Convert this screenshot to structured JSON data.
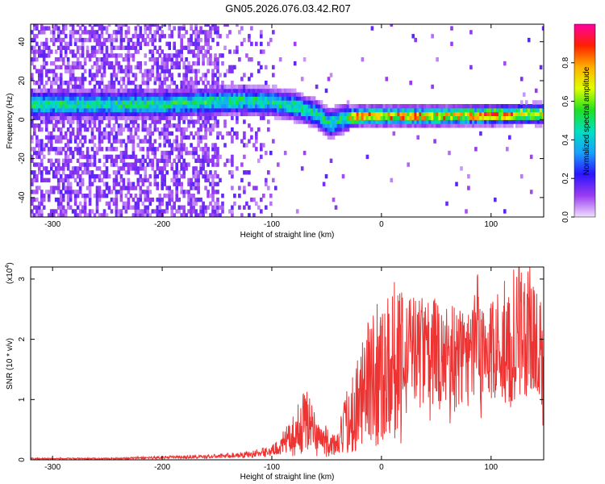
{
  "figure": {
    "title": "GN05.2026.076.03.42.R07"
  },
  "chart_data": [
    {
      "type": "heatmap",
      "xlabel": "Height of straight line (km)",
      "ylabel": "Frequency (Hz)",
      "xlim": [
        -320,
        148
      ],
      "ylim": [
        -50,
        49
      ],
      "x_ticks": [
        -300,
        -200,
        -100,
        0,
        100
      ],
      "y_ticks": [
        -40,
        -20,
        0,
        20,
        40
      ],
      "grid": false,
      "colorbar": {
        "label": "Normalized spectral amplitude",
        "range": [
          0,
          1
        ],
        "ticks": [
          0.0,
          0.2,
          0.4,
          0.6,
          0.8
        ],
        "colors": [
          "#f0e0ff",
          "#9a3cf0",
          "#2a14ff",
          "#1aa0ff",
          "#00e0c0",
          "#20e020",
          "#e0ff00",
          "#ffb000",
          "#ff2000",
          "#ff00a0"
        ]
      },
      "ridge": {
        "description_points": [
          {
            "x": -230,
            "y": 7
          },
          {
            "x": -200,
            "y": 7
          },
          {
            "x": -170,
            "y": 8
          },
          {
            "x": -130,
            "y": 9
          },
          {
            "x": -100,
            "y": 8
          },
          {
            "x": -80,
            "y": 6
          },
          {
            "x": -60,
            "y": 2
          },
          {
            "x": -48,
            "y": -3
          },
          {
            "x": -35,
            "y": 0
          },
          {
            "x": -20,
            "y": 1
          },
          {
            "x": 0,
            "y": 1
          },
          {
            "x": 50,
            "y": 1
          },
          {
            "x": 100,
            "y": 1.5
          },
          {
            "x": 130,
            "y": 2
          },
          {
            "x": 148,
            "y": 2
          }
        ]
      }
    },
    {
      "type": "line",
      "xlabel": "Height of straight line (km)",
      "ylabel": "SNR (10 * v/v)",
      "y_multiplier": "(x10",
      "y_multiplier_exp": "4",
      "y_multiplier_close": ")",
      "xlim": [
        -320,
        148
      ],
      "ylim": [
        0,
        3.2
      ],
      "x_ticks": [
        -300,
        -200,
        -100,
        0,
        100
      ],
      "y_ticks": [
        0,
        1,
        2,
        3
      ],
      "grid": false,
      "series": [
        {
          "color": "#ee3333",
          "x": [
            -320,
            -250,
            -200,
            -160,
            -140,
            -120,
            -100,
            -90,
            -80,
            -72,
            -68,
            -64,
            -60,
            -55,
            -50,
            -45,
            -40,
            -35,
            -30,
            -25,
            -20,
            -15,
            -10,
            -5,
            0,
            10,
            20,
            30,
            40,
            50,
            60,
            70,
            80,
            90,
            100,
            110,
            120,
            125,
            130,
            140,
            148
          ],
          "y": [
            0.02,
            0.02,
            0.04,
            0.05,
            0.07,
            0.09,
            0.15,
            0.25,
            0.4,
            0.6,
            0.75,
            0.55,
            0.4,
            0.35,
            0.3,
            0.25,
            0.22,
            0.5,
            0.7,
            0.85,
            1.0,
            1.2,
            1.35,
            1.5,
            1.45,
            1.7,
            1.8,
            1.85,
            1.85,
            1.8,
            1.75,
            1.72,
            1.7,
            1.72,
            1.75,
            1.8,
            1.9,
            2.2,
            2.0,
            1.9,
            1.8
          ]
        }
      ]
    }
  ]
}
